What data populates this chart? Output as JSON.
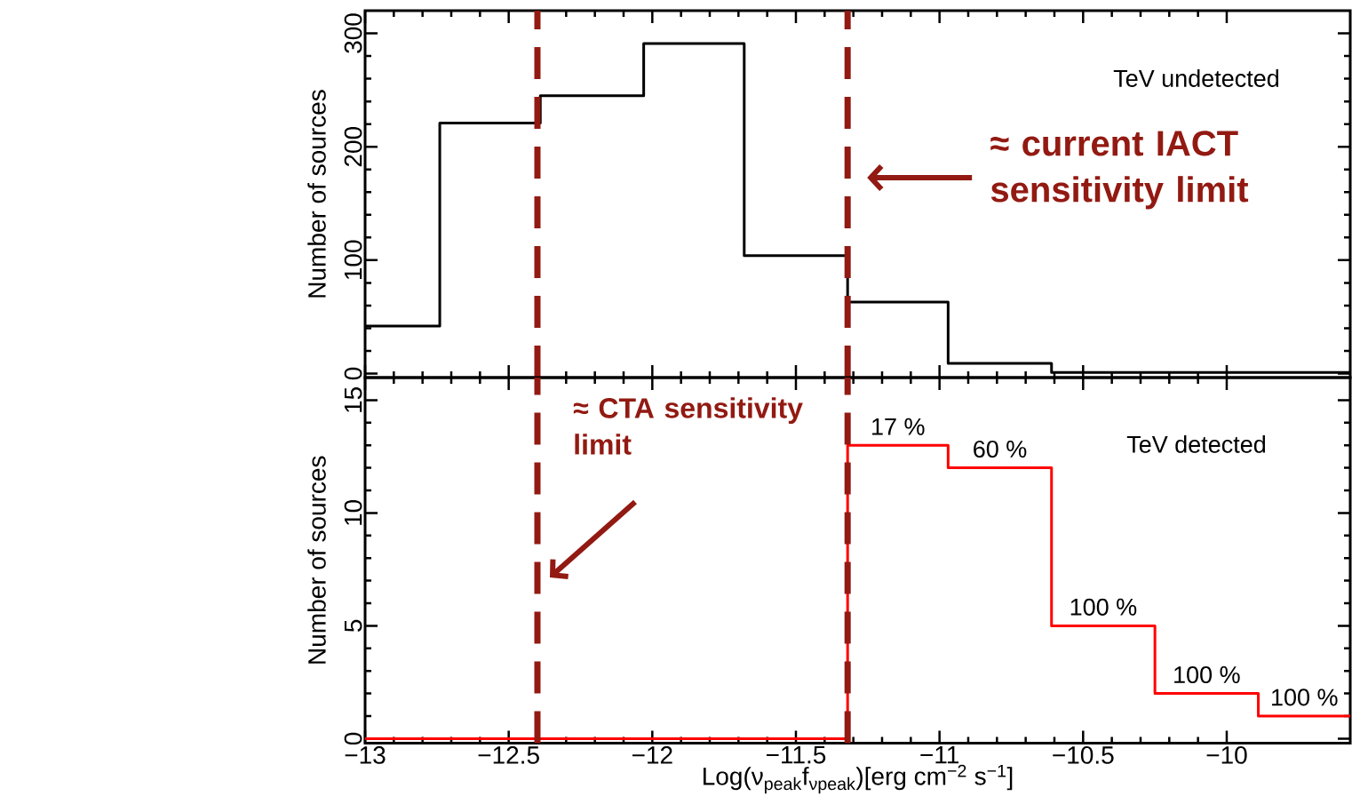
{
  "chart_data": [
    {
      "type": "histogram",
      "ylabel": "Number of sources",
      "bins": [
        -13,
        -12.74,
        -12.39,
        -12.03,
        -11.68,
        -11.32,
        -10.97,
        -10.61,
        -10.25,
        -9.89,
        -9.57
      ],
      "values": [
        42,
        221,
        245,
        291,
        104,
        63,
        9,
        1,
        1,
        1
      ],
      "color": "#000000",
      "xlim": [
        -13,
        -9.57
      ],
      "ylim": [
        -3.5,
        320
      ],
      "xticks": [
        -13,
        -12.5,
        -12,
        -11.5,
        -11,
        -10.5,
        -10
      ],
      "yticks": [
        0,
        100,
        200,
        300
      ],
      "tick_labels": "y",
      "ref_lines": [
        {
          "axis": "x",
          "value": -12.4,
          "color": "#921a12",
          "line_style": "dashed"
        },
        {
          "axis": "x",
          "value": -11.32,
          "label": "≈ current IACT sensitivity limit",
          "color": "#921a12",
          "line_style": "dashed"
        }
      ],
      "annotations": [
        "TeV undetected"
      ]
    },
    {
      "type": "histogram",
      "xlabel": "Log(ν$_{peak}$f$_{νpeak}$)[erg cm$^{−2}$ s$^{−1}$]",
      "ylabel": "Number of sources",
      "bins": [
        -13,
        -12.74,
        -12.39,
        -12.03,
        -11.68,
        -11.32,
        -10.97,
        -10.61,
        -10.25,
        -9.89,
        -9.57
      ],
      "values": [
        0,
        0,
        0,
        0,
        0,
        13,
        12,
        5,
        2,
        1
      ],
      "color": "#ff0000",
      "xlim": [
        -13,
        -9.57
      ],
      "ylim": [
        -0.2,
        16
      ],
      "xticks": [
        {
          "value": -13,
          "label": "−13"
        },
        {
          "value": -12.5,
          "label": "−12.5"
        },
        {
          "value": -12,
          "label": "−12"
        },
        {
          "value": -11.5,
          "label": "−11.5"
        },
        {
          "value": -11,
          "label": "−11"
        },
        {
          "value": -10.5,
          "label": "−10.5"
        },
        {
          "value": -10,
          "label": "−10"
        }
      ],
      "yticks": [
        0,
        5,
        10,
        15
      ],
      "ref_lines": [
        {
          "axis": "x",
          "value": -12.4,
          "label": "≈ CTA sensitivity limit",
          "color": "#921a12",
          "line_style": "dashed"
        },
        {
          "axis": "x",
          "value": -11.32,
          "color": "#921a12",
          "line_style": "dashed"
        }
      ],
      "annotations": [
        "TeV detected",
        {
          "text": "17 %",
          "x": -11.145,
          "y": 13
        },
        {
          "text": "60 %",
          "x": -10.79,
          "y": 12
        },
        {
          "text": "100 %",
          "x": -10.43,
          "y": 5
        },
        {
          "text": "100 %",
          "x": -10.07,
          "y": 2
        },
        {
          "text": "100 %",
          "x": -9.73,
          "y": 1
        }
      ]
    }
  ]
}
